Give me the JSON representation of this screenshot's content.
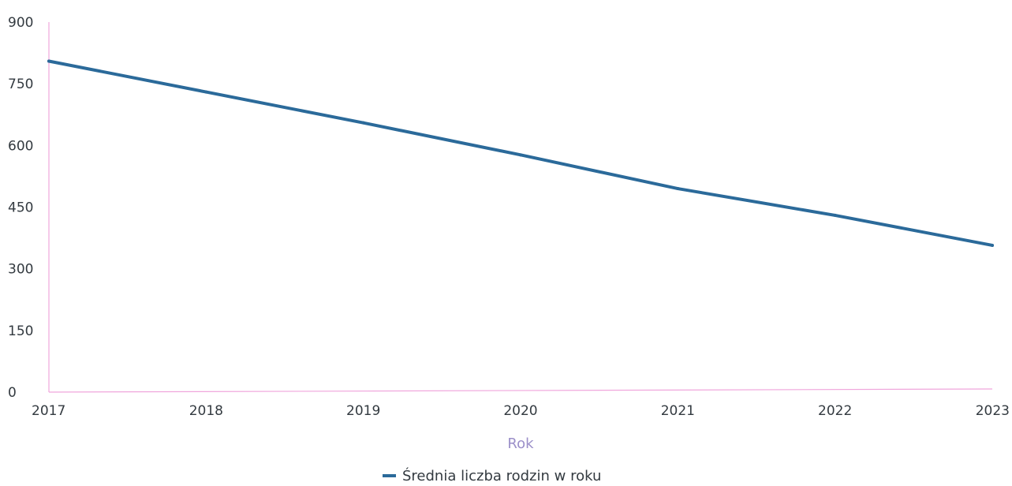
{
  "chart_data": {
    "type": "line",
    "categories": [
      "2017",
      "2018",
      "2019",
      "2020",
      "2021",
      "2022",
      "2023"
    ],
    "series": [
      {
        "name": "Średnia liczba rodzin w roku",
        "values": [
          805,
          730,
          655,
          577,
          495,
          430,
          357
        ],
        "color": "#2b6a9a"
      }
    ],
    "y_ticks": [
      "0",
      "150",
      "300",
      "450",
      "600",
      "750",
      "900"
    ],
    "ylim": [
      0,
      900
    ],
    "xlabel": "Rok",
    "ylabel": "",
    "title": "",
    "grid": false,
    "legend_position": "bottom-center",
    "axis_color": "#f0a6dc",
    "label_color": "#9b8fc9"
  }
}
